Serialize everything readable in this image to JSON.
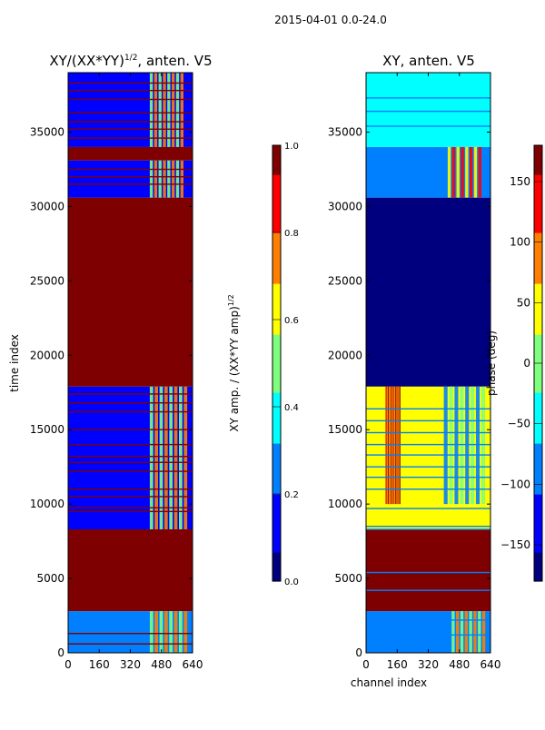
{
  "figure": {
    "suptitle": "2015-04-01 0.0-24.0"
  },
  "colors": {
    "background": "#ffffff",
    "jet": [
      "#00007f",
      "#0000ff",
      "#007fff",
      "#00ffff",
      "#7fff7f",
      "#ffff00",
      "#ff7f00",
      "#ff0000",
      "#7f0000"
    ]
  },
  "chart_data": [
    {
      "type": "heatmap",
      "title_main": "XY/(XX*YY)",
      "title_sup": "1/2",
      "title_tail": ", anten. V5",
      "xlabel": "",
      "ylabel": "time index",
      "xlim": [
        0,
        640
      ],
      "ylim": [
        0,
        39000
      ],
      "xticks": [
        0,
        160,
        320,
        480,
        640
      ],
      "yticks": [
        0,
        5000,
        10000,
        15000,
        20000,
        25000,
        30000,
        35000
      ],
      "colorbar": {
        "label_main": "XY amp. / (XX*YY amp)",
        "label_sup": "1/2",
        "range": [
          0.0,
          1.0
        ],
        "ticks": [
          "0.0",
          "0.2",
          "0.4",
          "0.6",
          "0.8",
          "1.0"
        ]
      },
      "blocks": [
        {
          "y0": 0,
          "y1": 2800,
          "v": 0.25
        },
        {
          "y0": 2800,
          "y1": 8300,
          "v": 1.0
        },
        {
          "y0": 8300,
          "y1": 17900,
          "v": 0.12
        },
        {
          "y0": 17900,
          "y1": 30600,
          "v": 1.0
        },
        {
          "y0": 30600,
          "y1": 33100,
          "v": 0.12
        },
        {
          "y0": 33100,
          "y1": 34000,
          "v": 1.0
        },
        {
          "y0": 34000,
          "y1": 39000,
          "v": 0.12
        }
      ],
      "streaks": [
        {
          "y0": 0,
          "y1": 2800,
          "x0": 420,
          "x1": 620,
          "v": 0.55
        },
        {
          "y0": 8300,
          "y1": 17900,
          "x0": 420,
          "x1": 620,
          "v": 0.45
        },
        {
          "y0": 30600,
          "y1": 33100,
          "x0": 420,
          "x1": 600,
          "v": 0.5
        },
        {
          "y0": 34000,
          "y1": 39000,
          "x0": 420,
          "x1": 600,
          "v": 0.45
        }
      ],
      "lines": [
        600,
        1300,
        9500,
        9750,
        10500,
        11000,
        12200,
        12800,
        13200,
        14000,
        15000,
        16200,
        16800,
        17400,
        31500,
        32000,
        32500,
        34600,
        35200,
        35700,
        36300,
        37200,
        37800,
        38300
      ],
      "line_value": 0.95
    },
    {
      "type": "heatmap",
      "title_main": "XY, anten. V5",
      "title_sup": "",
      "title_tail": "",
      "xlabel": "channel index",
      "ylabel": "",
      "xlim": [
        0,
        640
      ],
      "ylim": [
        0,
        39000
      ],
      "xticks": [
        0,
        160,
        320,
        480,
        640
      ],
      "yticks": [
        0,
        5000,
        10000,
        15000,
        20000,
        25000,
        30000,
        35000
      ],
      "colorbar": {
        "label_main": "phase (deg)",
        "label_sup": "",
        "range": [
          -180,
          180
        ],
        "ticks": [
          "−150",
          "−100",
          "−50",
          "0",
          "50",
          "100",
          "150"
        ]
      },
      "blocks": [
        {
          "y0": 0,
          "y1": 2800,
          "v": 0.2
        },
        {
          "y0": 2800,
          "y1": 8300,
          "v": 0.95
        },
        {
          "y0": 8300,
          "y1": 10000,
          "v": 0.65
        },
        {
          "y0": 10000,
          "y1": 17900,
          "v": 0.6
        },
        {
          "y0": 17900,
          "y1": 30600,
          "v": 0.05
        },
        {
          "y0": 30600,
          "y1": 34000,
          "v": 0.2
        },
        {
          "y0": 34000,
          "y1": 39000,
          "v": 0.4
        }
      ],
      "streaks": [
        {
          "y0": 0,
          "y1": 2800,
          "x0": 440,
          "x1": 620,
          "v": 0.45
        },
        {
          "y0": 10000,
          "y1": 17900,
          "x0": 100,
          "x1": 180,
          "v": 0.85
        },
        {
          "y0": 10000,
          "y1": 17900,
          "x0": 400,
          "x1": 620,
          "v": 0.3
        },
        {
          "y0": 30600,
          "y1": 34000,
          "x0": 420,
          "x1": 600,
          "v": 0.6
        }
      ],
      "lines": [
        1200,
        2200,
        4200,
        5400,
        8300,
        8500,
        9700,
        11000,
        11800,
        12500,
        13300,
        14000,
        14800,
        15600,
        16400,
        35400,
        36400,
        37300
      ],
      "line_value": 0.25
    }
  ]
}
